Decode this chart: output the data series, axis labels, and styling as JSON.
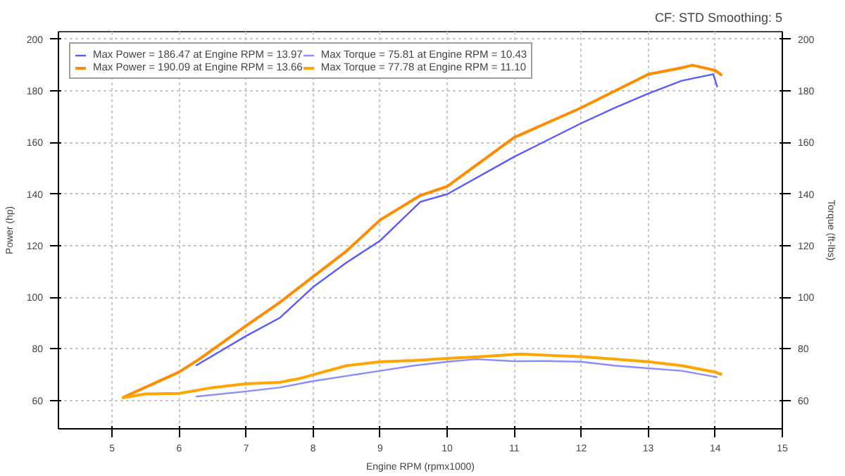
{
  "chart_data": {
    "type": "line",
    "annotations": [
      "CF: STD Smoothing: 5"
    ],
    "xlabel": "Engine RPM (rpmx1000)",
    "ylabel": "Power (hp)",
    "y2label": "Torque (ft-lbs)",
    "xlim": [
      4.2,
      15
    ],
    "xticks": [
      5,
      6,
      7,
      8,
      9,
      10,
      11,
      12,
      13,
      14,
      15
    ],
    "ylim": [
      49,
      203
    ],
    "yticks": [
      60,
      80,
      100,
      120,
      140,
      160,
      180,
      200
    ],
    "y2lim": [
      49,
      203
    ],
    "y2ticks": [
      60,
      80,
      100,
      120,
      140,
      160,
      180,
      200
    ],
    "grid": true,
    "legend": "top left",
    "marker": "none",
    "line_style": "solid",
    "series": [
      {
        "name": "Max Power = 186.47 at Engine RPM = 13.97",
        "color": "#5a5aff",
        "x": [
          6.25,
          7,
          7.5,
          8,
          8.5,
          9,
          9.6,
          10,
          11,
          12,
          12.5,
          13,
          13.5,
          13.97,
          14.03
        ],
        "values": [
          73.5,
          85,
          92,
          104,
          113.5,
          122,
          137,
          140,
          154.5,
          167.5,
          173.5,
          179,
          184,
          186.5,
          181.5
        ]
      },
      {
        "name": "Max Power = 190.09 at Engine RPM = 13.66",
        "color": "#ff8c00",
        "x": [
          5.15,
          6,
          6.3,
          7,
          7.5,
          8,
          8.5,
          9,
          9.6,
          10,
          11,
          12,
          12.5,
          13,
          13.5,
          13.66,
          14,
          14.1
        ],
        "values": [
          61,
          71,
          76,
          89,
          98,
          108,
          118,
          130,
          139.5,
          143,
          162,
          173.5,
          180,
          186.5,
          189,
          190,
          188,
          186
        ]
      },
      {
        "name": "Max Torque = 75.81 at Engine RPM = 10.43",
        "color": "#8c8cff",
        "x": [
          6.25,
          7,
          7.5,
          8,
          8.5,
          9,
          9.5,
          10,
          10.43,
          11,
          11.5,
          12,
          12.5,
          13,
          13.5,
          14.03
        ],
        "values": [
          61.5,
          63.5,
          65,
          67.5,
          69.5,
          71.5,
          73.5,
          75,
          76,
          75.2,
          75.3,
          75,
          73.5,
          72.5,
          71.5,
          69
        ]
      },
      {
        "name": "Max Torque = 77.78 at Engine RPM = 11.10",
        "color": "#ffa500",
        "x": [
          5.15,
          5.5,
          6,
          6.5,
          7,
          7.5,
          7.8,
          8,
          8.5,
          9,
          9.5,
          10,
          10.5,
          11.1,
          11.5,
          12,
          12.5,
          13,
          13.5,
          14,
          14.1
        ],
        "values": [
          61,
          62.5,
          62.7,
          65,
          66.5,
          67,
          68.5,
          70,
          73.5,
          75,
          75.5,
          76.3,
          77,
          78,
          77.5,
          77,
          76,
          75,
          73.5,
          71,
          70
        ]
      }
    ]
  }
}
